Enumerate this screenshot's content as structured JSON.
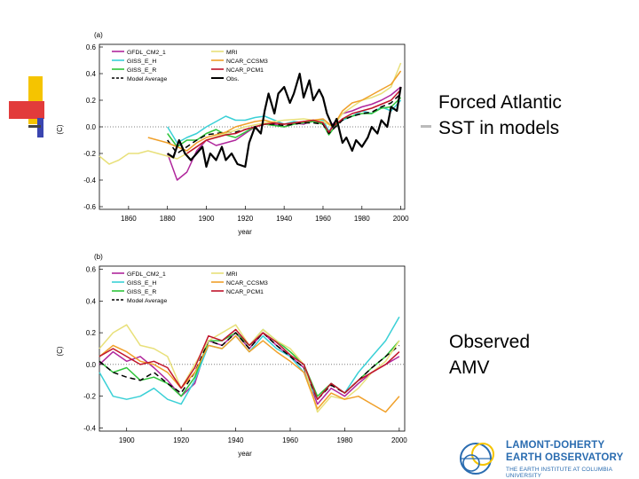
{
  "slide": {
    "label_top": [
      "Forced Atlantic",
      "SST in models"
    ],
    "label_bottom": [
      "Observed",
      "AMV"
    ],
    "logo": {
      "line1": "LAMONT-DOHERTY",
      "line2": "EARTH OBSERVATORY",
      "line3": "THE EARTH INSTITUTE AT COLUMBIA UNIVERSITY"
    },
    "accent_colors": {
      "yellow": "#f5c400",
      "red": "#e23b3b",
      "blue": "#3a45b0"
    }
  },
  "chart_data": [
    {
      "type": "line",
      "panel_label": "(a)",
      "xlabel": "year",
      "ylabel": "(C)",
      "xlim": [
        1845,
        2002
      ],
      "ylim": [
        -0.62,
        0.62
      ],
      "xticks": [
        1860,
        1880,
        1900,
        1920,
        1940,
        1960,
        1980,
        2000
      ],
      "yticks": [
        -0.6,
        -0.4,
        -0.2,
        0.0,
        0.2,
        0.4,
        0.6
      ],
      "ytick_labels": [
        "-0.6",
        "-0.4",
        "-0.2",
        "0.0",
        "0.2",
        "0.4",
        "0.6"
      ],
      "legend_placement": "top-left",
      "series": [
        {
          "name": "GFDL_CM2_1",
          "color": "#b0269c",
          "dash": "",
          "x": [
            1880,
            1885,
            1890,
            1895,
            1900,
            1905,
            1910,
            1915,
            1920,
            1925,
            1930,
            1935,
            1940,
            1945,
            1950,
            1955,
            1960,
            1963,
            1965,
            1970,
            1975,
            1980,
            1985,
            1990,
            1995,
            2000
          ],
          "y": [
            -0.2,
            -0.4,
            -0.34,
            -0.18,
            -0.1,
            -0.14,
            -0.12,
            -0.1,
            -0.05,
            0.0,
            0.02,
            0.02,
            0.0,
            0.03,
            0.02,
            0.05,
            0.03,
            -0.05,
            0.02,
            0.1,
            0.12,
            0.15,
            0.17,
            0.2,
            0.24,
            0.3
          ]
        },
        {
          "name": "GISS_E_H",
          "color": "#3ad0d6",
          "dash": "",
          "x": [
            1880,
            1885,
            1890,
            1895,
            1900,
            1905,
            1910,
            1915,
            1920,
            1925,
            1930,
            1935,
            1940,
            1945,
            1950,
            1955,
            1960,
            1963,
            1965,
            1970,
            1975,
            1980,
            1985,
            1990,
            1995,
            2000
          ],
          "y": [
            0.0,
            -0.12,
            -0.08,
            -0.05,
            0.0,
            0.04,
            0.08,
            0.05,
            0.05,
            0.07,
            0.08,
            0.05,
            0.02,
            0.04,
            0.03,
            0.04,
            0.05,
            -0.03,
            0.0,
            0.05,
            0.08,
            0.12,
            0.1,
            0.15,
            0.12,
            0.2
          ]
        },
        {
          "name": "GISS_E_R",
          "color": "#2ec43a",
          "dash": "",
          "x": [
            1880,
            1885,
            1890,
            1895,
            1900,
            1905,
            1910,
            1915,
            1920,
            1925,
            1930,
            1935,
            1940,
            1945,
            1950,
            1955,
            1960,
            1963,
            1965,
            1970,
            1975,
            1980,
            1985,
            1990,
            1995,
            2000
          ],
          "y": [
            -0.05,
            -0.15,
            -0.1,
            -0.1,
            -0.05,
            -0.02,
            -0.06,
            -0.08,
            -0.04,
            0.0,
            0.02,
            0.01,
            0.0,
            0.02,
            0.03,
            0.04,
            0.02,
            -0.06,
            -0.02,
            0.06,
            0.08,
            0.1,
            0.1,
            0.14,
            0.15,
            0.22
          ]
        },
        {
          "name": "Model Average",
          "color": "#000000",
          "dash": "6,4",
          "x": [
            1880,
            1885,
            1890,
            1895,
            1900,
            1905,
            1910,
            1915,
            1920,
            1925,
            1930,
            1935,
            1940,
            1945,
            1950,
            1955,
            1960,
            1963,
            1965,
            1970,
            1975,
            1980,
            1985,
            1990,
            1995,
            2000
          ],
          "y": [
            -0.1,
            -0.2,
            -0.15,
            -0.1,
            -0.06,
            -0.05,
            -0.04,
            -0.04,
            -0.02,
            0.0,
            0.02,
            0.02,
            0.01,
            0.02,
            0.03,
            0.03,
            0.02,
            -0.05,
            -0.02,
            0.05,
            0.08,
            0.1,
            0.11,
            0.15,
            0.18,
            0.25
          ]
        },
        {
          "name": "MRI",
          "color": "#e8e07a",
          "dash": "",
          "x": [
            1845,
            1850,
            1855,
            1860,
            1865,
            1870,
            1875,
            1880,
            1885,
            1890,
            1895,
            1900,
            1910,
            1920,
            1930,
            1940,
            1950,
            1960,
            1965,
            1970,
            1975,
            1980,
            1985,
            1990,
            1995,
            2000
          ],
          "y": [
            -0.22,
            -0.28,
            -0.25,
            -0.2,
            -0.2,
            -0.18,
            -0.2,
            -0.22,
            -0.24,
            -0.2,
            -0.15,
            -0.1,
            -0.05,
            0.0,
            0.03,
            0.05,
            0.06,
            0.04,
            0.0,
            0.1,
            0.15,
            0.2,
            0.22,
            0.25,
            0.3,
            0.48
          ]
        },
        {
          "name": "NCAR_CCSM3",
          "color": "#f0a02a",
          "dash": "",
          "x": [
            1870,
            1875,
            1880,
            1885,
            1890,
            1895,
            1900,
            1905,
            1910,
            1915,
            1920,
            1925,
            1930,
            1935,
            1940,
            1950,
            1960,
            1965,
            1970,
            1975,
            1980,
            1985,
            1990,
            1995,
            2000
          ],
          "y": [
            -0.08,
            -0.1,
            -0.12,
            -0.15,
            -0.18,
            -0.12,
            -0.08,
            -0.06,
            -0.04,
            0.0,
            0.02,
            0.04,
            0.05,
            0.03,
            0.02,
            0.04,
            0.06,
            0.0,
            0.12,
            0.18,
            0.2,
            0.24,
            0.28,
            0.32,
            0.42
          ]
        },
        {
          "name": "NCAR_PCM1",
          "color": "#c0142a",
          "dash": "",
          "x": [
            1890,
            1895,
            1900,
            1905,
            1910,
            1915,
            1920,
            1925,
            1930,
            1935,
            1940,
            1945,
            1950,
            1955,
            1960,
            1963,
            1965,
            1970,
            1975,
            1980,
            1985,
            1990,
            1995,
            2000
          ],
          "y": [
            -0.2,
            -0.15,
            -0.1,
            -0.08,
            -0.06,
            -0.05,
            -0.02,
            0.0,
            0.02,
            0.03,
            0.02,
            0.03,
            0.04,
            0.05,
            0.03,
            -0.04,
            0.0,
            0.06,
            0.1,
            0.12,
            0.14,
            0.17,
            0.2,
            0.28
          ]
        },
        {
          "name": "Obs.",
          "color": "#000000",
          "dash": "",
          "width": 2.2,
          "x": [
            1880,
            1883,
            1886,
            1889,
            1892,
            1895,
            1898,
            1900,
            1902,
            1905,
            1908,
            1910,
            1913,
            1916,
            1920,
            1922,
            1925,
            1928,
            1930,
            1932,
            1935,
            1937,
            1940,
            1943,
            1945,
            1948,
            1950,
            1953,
            1955,
            1958,
            1960,
            1962,
            1965,
            1967,
            1970,
            1972,
            1975,
            1977,
            1980,
            1983,
            1985,
            1988,
            1990,
            1993,
            1995,
            1998,
            2000
          ],
          "y": [
            -0.2,
            -0.23,
            -0.1,
            -0.2,
            -0.25,
            -0.2,
            -0.15,
            -0.3,
            -0.2,
            -0.25,
            -0.15,
            -0.25,
            -0.2,
            -0.28,
            -0.3,
            -0.12,
            0.0,
            -0.05,
            0.12,
            0.25,
            0.1,
            0.25,
            0.3,
            0.18,
            0.25,
            0.4,
            0.22,
            0.35,
            0.2,
            0.28,
            0.22,
            0.1,
            0.0,
            0.06,
            -0.12,
            -0.08,
            -0.18,
            -0.1,
            -0.15,
            -0.08,
            0.0,
            -0.05,
            0.05,
            0.0,
            0.15,
            0.12,
            0.3
          ]
        }
      ]
    },
    {
      "type": "line",
      "panel_label": "(b)",
      "xlabel": "year",
      "ylabel": "(C)",
      "xlim": [
        1890,
        2002
      ],
      "ylim": [
        -0.42,
        0.62
      ],
      "xticks": [
        1900,
        1920,
        1940,
        1960,
        1980,
        2000
      ],
      "yticks": [
        -0.4,
        -0.2,
        0.0,
        0.2,
        0.4,
        0.6
      ],
      "ytick_labels": [
        "-0.4",
        "-0.2",
        "0.0",
        "0.2",
        "0.4",
        "0.6"
      ],
      "legend_placement": "top-left",
      "series": [
        {
          "name": "GFDL_CM2_1",
          "color": "#b0269c",
          "dash": "",
          "x": [
            1890,
            1895,
            1900,
            1905,
            1910,
            1915,
            1920,
            1925,
            1930,
            1935,
            1940,
            1945,
            1950,
            1955,
            1960,
            1965,
            1970,
            1975,
            1980,
            1985,
            1990,
            1995,
            2000
          ],
          "y": [
            0.0,
            0.08,
            0.02,
            0.05,
            -0.02,
            -0.1,
            -0.2,
            -0.12,
            0.15,
            0.12,
            0.2,
            0.1,
            0.2,
            0.12,
            0.05,
            -0.02,
            -0.25,
            -0.15,
            -0.2,
            -0.12,
            -0.05,
            0.0,
            0.05
          ]
        },
        {
          "name": "GISS_E_H",
          "color": "#3ad0d6",
          "dash": "",
          "x": [
            1890,
            1895,
            1900,
            1905,
            1910,
            1915,
            1920,
            1925,
            1930,
            1935,
            1940,
            1945,
            1950,
            1955,
            1960,
            1965,
            1970,
            1975,
            1980,
            1985,
            1990,
            1995,
            2000
          ],
          "y": [
            -0.05,
            -0.2,
            -0.22,
            -0.2,
            -0.15,
            -0.22,
            -0.25,
            -0.1,
            0.12,
            0.1,
            0.18,
            0.08,
            0.18,
            0.1,
            0.05,
            -0.05,
            -0.22,
            -0.12,
            -0.18,
            -0.05,
            0.05,
            0.15,
            0.3
          ]
        },
        {
          "name": "GISS_E_R",
          "color": "#2ec43a",
          "dash": "",
          "x": [
            1890,
            1895,
            1900,
            1905,
            1910,
            1915,
            1920,
            1925,
            1930,
            1935,
            1940,
            1945,
            1950,
            1955,
            1960,
            1965,
            1970,
            1975,
            1980,
            1985,
            1990,
            1995,
            2000
          ],
          "y": [
            0.02,
            -0.05,
            -0.02,
            -0.1,
            -0.08,
            -0.12,
            -0.2,
            -0.08,
            0.15,
            0.15,
            0.2,
            0.12,
            0.22,
            0.15,
            0.08,
            0.0,
            -0.2,
            -0.12,
            -0.18,
            -0.1,
            -0.02,
            0.05,
            0.15
          ]
        },
        {
          "name": "Model Average",
          "color": "#000000",
          "dash": "6,4",
          "x": [
            1890,
            1895,
            1900,
            1905,
            1910,
            1915,
            1920,
            1925,
            1930,
            1935,
            1940,
            1945,
            1950,
            1955,
            1960,
            1965,
            1970,
            1975,
            1980,
            1985,
            1990,
            1995,
            2000
          ],
          "y": [
            0.02,
            -0.05,
            -0.08,
            -0.1,
            -0.05,
            -0.12,
            -0.18,
            -0.05,
            0.15,
            0.12,
            0.2,
            0.1,
            0.2,
            0.12,
            0.05,
            -0.02,
            -0.22,
            -0.13,
            -0.18,
            -0.1,
            -0.02,
            0.05,
            0.12
          ]
        },
        {
          "name": "MRI",
          "color": "#e8e07a",
          "dash": "",
          "x": [
            1890,
            1895,
            1900,
            1905,
            1910,
            1915,
            1920,
            1925,
            1930,
            1935,
            1940,
            1945,
            1950,
            1955,
            1960,
            1965,
            1970,
            1975,
            1980,
            1985,
            1990,
            1995,
            2000
          ],
          "y": [
            0.1,
            0.2,
            0.25,
            0.12,
            0.1,
            0.05,
            -0.15,
            0.0,
            0.15,
            0.2,
            0.25,
            0.12,
            0.22,
            0.15,
            0.1,
            0.0,
            -0.3,
            -0.2,
            -0.22,
            -0.15,
            -0.05,
            0.02,
            0.15
          ]
        },
        {
          "name": "NCAR_CCSM3",
          "color": "#f0a02a",
          "dash": "",
          "x": [
            1890,
            1895,
            1900,
            1905,
            1910,
            1915,
            1920,
            1925,
            1930,
            1935,
            1940,
            1945,
            1950,
            1955,
            1960,
            1965,
            1970,
            1975,
            1980,
            1985,
            1990,
            1995,
            2000
          ],
          "y": [
            0.05,
            0.12,
            0.08,
            0.02,
            0.0,
            -0.05,
            -0.15,
            -0.05,
            0.12,
            0.1,
            0.18,
            0.08,
            0.15,
            0.08,
            0.02,
            -0.05,
            -0.28,
            -0.18,
            -0.22,
            -0.2,
            -0.25,
            -0.3,
            -0.2
          ]
        },
        {
          "name": "NCAR_PCM1",
          "color": "#c0142a",
          "dash": "",
          "x": [
            1890,
            1895,
            1900,
            1905,
            1910,
            1915,
            1920,
            1925,
            1930,
            1935,
            1940,
            1945,
            1950,
            1955,
            1960,
            1965,
            1970,
            1975,
            1980,
            1985,
            1990,
            1995,
            2000
          ],
          "y": [
            0.05,
            0.1,
            0.05,
            0.0,
            0.02,
            -0.02,
            -0.15,
            -0.02,
            0.18,
            0.15,
            0.22,
            0.12,
            0.2,
            0.14,
            0.06,
            0.0,
            -0.22,
            -0.12,
            -0.18,
            -0.1,
            -0.05,
            0.0,
            0.08
          ]
        }
      ]
    }
  ]
}
